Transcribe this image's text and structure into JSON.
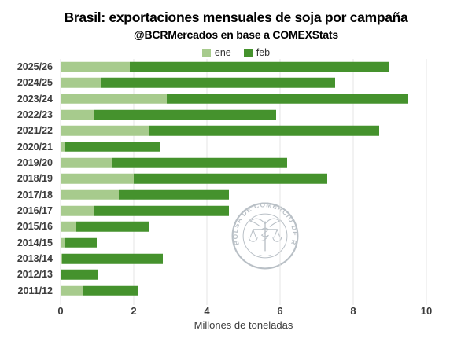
{
  "chart_data": {
    "type": "bar",
    "orientation": "horizontal",
    "stacked": true,
    "title": "Brasil: exportaciones mensuales de soja por campaña",
    "subtitle": "@BCRMercados en base a COMEXStats",
    "categories": [
      "2025/26",
      "2024/25",
      "2023/24",
      "2022/23",
      "2021/22",
      "2020/21",
      "2019/20",
      "2018/19",
      "2017/18",
      "2016/17",
      "2015/16",
      "2014/15",
      "2013/14",
      "2012/13",
      "2011/12"
    ],
    "series": [
      {
        "name": "ene",
        "color": "#a7cb8d",
        "values": [
          1.9,
          1.1,
          2.9,
          0.9,
          2.4,
          0.1,
          1.4,
          2.0,
          1.6,
          0.9,
          0.4,
          0.1,
          0.05,
          0.0,
          0.6
        ]
      },
      {
        "name": "feb",
        "color": "#45922d",
        "values": [
          7.1,
          6.4,
          6.6,
          5.0,
          6.3,
          2.6,
          4.8,
          5.3,
          3.0,
          3.7,
          2.0,
          0.9,
          2.75,
          1.0,
          1.5
        ]
      }
    ],
    "totals": [
      9.0,
      7.5,
      9.5,
      5.9,
      8.7,
      2.7,
      6.2,
      7.3,
      4.6,
      4.6,
      2.4,
      1.0,
      2.8,
      1.0,
      2.1
    ],
    "xlabel": "Millones de toneladas",
    "xlim": [
      0,
      10
    ],
    "xticks": [
      0,
      2,
      4,
      6,
      8,
      10
    ],
    "grid": true,
    "legend_position": "top"
  },
  "watermark": {
    "ring_text": "BOLSA DE COMERCIO DE ROSARIO",
    "color": "#b6bdc4"
  },
  "colors": {
    "background": "#ffffff",
    "gridline": "#e4e4e4",
    "label_text": "#3c3c3c",
    "title_text": "#000000"
  }
}
